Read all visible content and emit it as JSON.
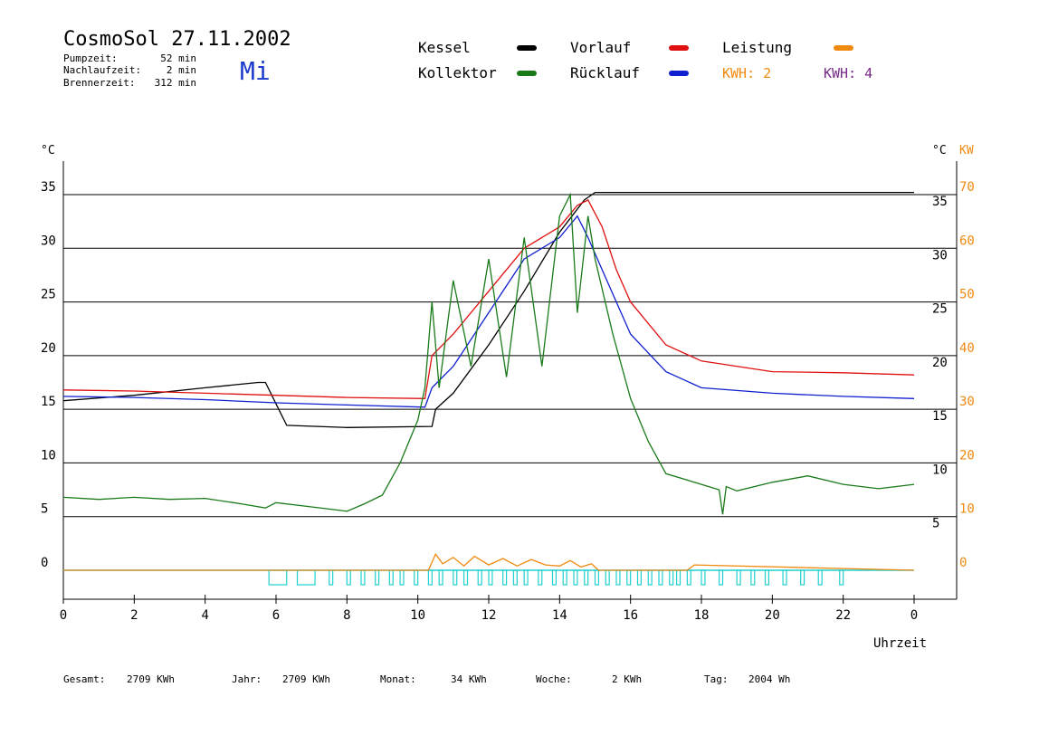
{
  "header": {
    "title": "CosmoSol 27.11.2002",
    "day": "Mi",
    "stats": [
      {
        "label": "Pumpzeit:",
        "value": "52 min"
      },
      {
        "label": "Nachlaufzeit:",
        "value": "2 min"
      },
      {
        "label": "Brennerzeit:",
        "value": "312 min"
      }
    ]
  },
  "legend": {
    "kessel": "Kessel",
    "kollektor": "Kollektor",
    "vorlauf": "Vorlauf",
    "ruecklauf": "Rücklauf",
    "leistung": "Leistung",
    "kwh1": "KWH: 2",
    "kwh2": "KWH: 4"
  },
  "colors": {
    "kessel": "#000000",
    "kollektor": "#1a7a1a",
    "vorlauf": "#e01010",
    "ruecklauf": "#1020d0",
    "leistung": "#f08a10",
    "kwh2": "#7a2a8a",
    "pump": "#20d0d0",
    "dayTitle": "#1a3acc"
  },
  "footer": [
    {
      "label": "Gesamt:",
      "value": "2709 KWh"
    },
    {
      "label": "Jahr:",
      "value": "2709 KWh"
    },
    {
      "label": "Monat:",
      "value": "34 KWh"
    },
    {
      "label": "Woche:",
      "value": "2 KWh"
    },
    {
      "label": "Tag:",
      "value": "2004 Wh"
    }
  ],
  "chart_data": {
    "type": "line",
    "xlabel": "Uhrzeit",
    "ylabel_left": "°C",
    "ylabel_right": "°C",
    "ylabel_right2": "KW",
    "xlim": [
      0,
      24
    ],
    "ylim": [
      0,
      35
    ],
    "y2lim": [
      0,
      70
    ],
    "grid": true,
    "x_ticks": [
      "0",
      "2",
      "4",
      "6",
      "8",
      "10",
      "12",
      "14",
      "16",
      "18",
      "20",
      "22",
      "0"
    ],
    "y_ticks": [
      0,
      5,
      10,
      15,
      20,
      25,
      30,
      35
    ],
    "y2_ticks": [
      0,
      10,
      20,
      30,
      40,
      50,
      60,
      70
    ],
    "series": [
      {
        "name": "Kessel",
        "x": [
          0,
          2,
          4,
          5.5,
          5.7,
          6,
          6.3,
          8,
          10.4,
          10.5,
          11,
          12,
          13,
          14,
          14.7,
          15,
          16,
          18,
          20,
          22,
          24
        ],
        "y": [
          15.8,
          16.3,
          17,
          17.5,
          17.5,
          15.5,
          13.5,
          13.3,
          13.4,
          15,
          16.5,
          21,
          26,
          31.5,
          34.5,
          35.2,
          35.2,
          35.2,
          35.2,
          35.2,
          35.2
        ]
      },
      {
        "name": "Vorlauf",
        "x": [
          0,
          2,
          4,
          6,
          8,
          10.2,
          10.4,
          11,
          12,
          13,
          14,
          14.5,
          14.8,
          15.2,
          15.6,
          16,
          17,
          18,
          20,
          22,
          24
        ],
        "y": [
          16.8,
          16.7,
          16.5,
          16.3,
          16.1,
          16,
          20,
          22,
          26,
          30,
          32,
          34,
          34.5,
          32,
          28,
          25,
          21,
          19.5,
          18.5,
          18.4,
          18.2
        ]
      },
      {
        "name": "Rücklauf",
        "x": [
          0,
          2,
          4,
          6,
          8,
          10.2,
          10.4,
          11,
          12,
          13,
          14,
          14.5,
          14.8,
          15.2,
          15.6,
          16,
          17,
          18,
          20,
          22,
          24
        ],
        "y": [
          16.2,
          16.1,
          15.9,
          15.6,
          15.4,
          15.2,
          17,
          19,
          24,
          29,
          31,
          33,
          31,
          28,
          25,
          22,
          18.5,
          17,
          16.5,
          16.2,
          16
        ]
      },
      {
        "name": "Kollektor",
        "x": [
          0,
          1,
          2,
          3,
          4,
          5,
          5.7,
          6,
          7,
          7.5,
          8,
          8.5,
          9,
          9.5,
          10,
          10.2,
          10.4,
          10.6,
          11,
          11.5,
          12,
          12.5,
          13,
          13.5,
          14,
          14.3,
          14.5,
          14.8,
          15,
          15.5,
          16,
          16.5,
          17,
          18,
          18.5,
          18.6,
          18.7,
          19,
          20,
          21,
          22,
          23,
          24
        ],
        "y": [
          6.8,
          6.6,
          6.8,
          6.6,
          6.7,
          6.2,
          5.8,
          6.3,
          5.9,
          5.7,
          5.5,
          6.2,
          7,
          10,
          14,
          17,
          25,
          17,
          27,
          19,
          29,
          18,
          31,
          19,
          33,
          35,
          24,
          33,
          29,
          22,
          16,
          12,
          9,
          8,
          7.5,
          5.2,
          7.8,
          7.4,
          8.2,
          8.8,
          8,
          7.6,
          8
        ]
      },
      {
        "name": "Leistung",
        "x": [
          0,
          10.3,
          10.5,
          10.7,
          11,
          11.3,
          11.6,
          12,
          12.4,
          12.8,
          13.2,
          13.6,
          14,
          14.3,
          14.6,
          14.9,
          15.1,
          17.6,
          17.8,
          24
        ],
        "y": [
          0,
          0,
          1.5,
          0.6,
          1.2,
          0.4,
          1.3,
          0.5,
          1.1,
          0.4,
          1,
          0.5,
          0.4,
          0.9,
          0.3,
          0.6,
          0,
          0,
          0.5,
          0
        ]
      }
    ],
    "pump_cycles": [
      [
        5.8,
        6.3
      ],
      [
        6.6,
        7.1
      ],
      [
        7.5,
        7.6
      ],
      [
        8,
        8.1
      ],
      [
        8.4,
        8.5
      ],
      [
        8.8,
        8.9
      ],
      [
        9.2,
        9.3
      ],
      [
        9.5,
        9.6
      ],
      [
        9.9,
        10
      ],
      [
        10.3,
        10.4
      ],
      [
        10.6,
        10.7
      ],
      [
        11,
        11.1
      ],
      [
        11.3,
        11.4
      ],
      [
        11.7,
        11.8
      ],
      [
        12,
        12.1
      ],
      [
        12.4,
        12.5
      ],
      [
        12.7,
        12.8
      ],
      [
        13,
        13.1
      ],
      [
        13.4,
        13.5
      ],
      [
        13.8,
        13.9
      ],
      [
        14.1,
        14.2
      ],
      [
        14.4,
        14.5
      ],
      [
        14.7,
        14.8
      ],
      [
        15,
        15.1
      ],
      [
        15.3,
        15.4
      ],
      [
        15.6,
        15.7
      ],
      [
        15.9,
        16
      ],
      [
        16.2,
        16.3
      ],
      [
        16.5,
        16.6
      ],
      [
        16.8,
        16.9
      ],
      [
        17.1,
        17.2
      ],
      [
        17.3,
        17.4
      ],
      [
        17.6,
        17.7
      ],
      [
        18,
        18.1
      ],
      [
        18.5,
        18.6
      ],
      [
        19,
        19.1
      ],
      [
        19.4,
        19.5
      ],
      [
        19.8,
        19.9
      ],
      [
        20.3,
        20.4
      ],
      [
        20.8,
        20.9
      ],
      [
        21.3,
        21.4
      ],
      [
        21.9,
        22
      ]
    ]
  }
}
